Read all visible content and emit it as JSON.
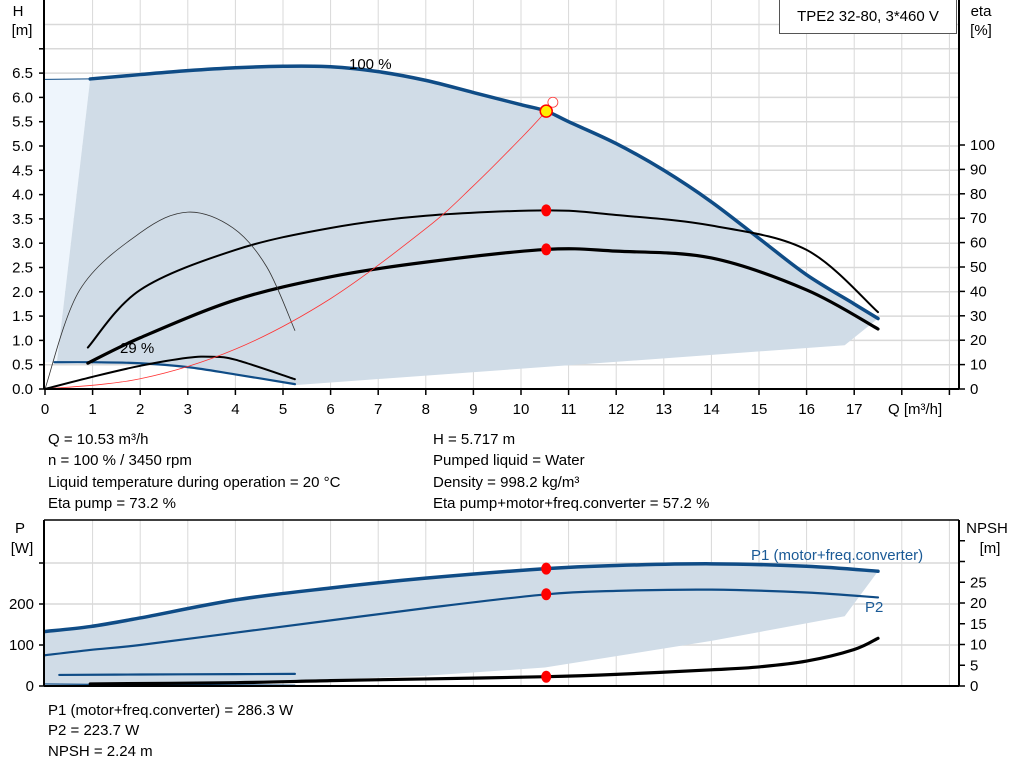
{
  "title": "TPE2 32-80, 3*460 V",
  "colors": {
    "curve_blue": "#0f4c86",
    "range_fill": "#d0dce7",
    "range_fill_light": "#eef5fc",
    "grid": "#d9d9d9",
    "operating_point": "#ff0000",
    "duty_marker": "#ffee00",
    "system_curve": "#ff3333",
    "label_blue": "#1a5a96"
  },
  "chart_data": [
    {
      "type": "line",
      "name": "head-efficiency",
      "xlabel": "Q [m³/h]",
      "ylabel_left": {
        "name": "H",
        "unit": "[m]"
      },
      "ylabel_right": {
        "name": "eta",
        "unit": "[%]"
      },
      "xlim": [
        0,
        19
      ],
      "ylim_left": [
        0,
        8
      ],
      "ylim_right": [
        0,
        160
      ],
      "x_ticks": [
        "0",
        "1",
        "2",
        "3",
        "4",
        "5",
        "6",
        "7",
        "8",
        "9",
        "10",
        "11",
        "12",
        "13",
        "14",
        "15",
        "16",
        "17"
      ],
      "y_ticks_left": [
        "0.0",
        "0.5",
        "1.0",
        "1.5",
        "2.0",
        "2.5",
        "3.0",
        "3.5",
        "4.0",
        "4.5",
        "5.0",
        "5.5",
        "6.0",
        "6.5"
      ],
      "y_ticks_right": [
        "0",
        "10",
        "20",
        "30",
        "40",
        "50",
        "60",
        "70",
        "80",
        "90",
        "100"
      ],
      "grid": true,
      "annotations": {
        "max_speed": "100 %",
        "min_speed": "29 %"
      },
      "operating_range": {
        "outer": [
          [
            0.95,
            6.38
          ],
          [
            2,
            6.47
          ],
          [
            3,
            6.55
          ],
          [
            4,
            6.61
          ],
          [
            5,
            6.64
          ],
          [
            6,
            6.63
          ],
          [
            7,
            6.53
          ],
          [
            8,
            6.35
          ],
          [
            9,
            6.1
          ],
          [
            10,
            5.85
          ],
          [
            11,
            5.5
          ],
          [
            12,
            5.05
          ],
          [
            13,
            4.5
          ],
          [
            14,
            3.85
          ],
          [
            15,
            3.1
          ],
          [
            16,
            2.35
          ],
          [
            17,
            1.75
          ],
          [
            17.5,
            1.45
          ],
          [
            16.8,
            0.9
          ],
          [
            5.25,
            0.08
          ],
          [
            4,
            0.3
          ],
          [
            3,
            0.45
          ],
          [
            2,
            0.53
          ],
          [
            0.25,
            0.55
          ]
        ],
        "extension": [
          [
            0,
            6.37
          ],
          [
            0.95,
            6.37
          ],
          [
            0.25,
            0.55
          ],
          [
            0,
            0.55
          ]
        ]
      },
      "series": [
        {
          "key": "h100",
          "axis": "left",
          "style": "blue-thick",
          "points": [
            [
              0.95,
              6.38
            ],
            [
              2,
              6.47
            ],
            [
              3,
              6.55
            ],
            [
              4,
              6.61
            ],
            [
              5,
              6.64
            ],
            [
              6,
              6.63
            ],
            [
              7,
              6.53
            ],
            [
              8,
              6.35
            ],
            [
              9,
              6.1
            ],
            [
              10,
              5.85
            ],
            [
              10.53,
              5.717
            ],
            [
              11,
              5.5
            ],
            [
              12,
              5.05
            ],
            [
              13,
              4.5
            ],
            [
              14,
              3.85
            ],
            [
              15,
              3.1
            ],
            [
              16,
              2.35
            ],
            [
              17,
              1.75
            ],
            [
              17.5,
              1.45
            ]
          ]
        },
        {
          "key": "h29",
          "axis": "left",
          "style": "blue",
          "points": [
            [
              0.2,
              0.55
            ],
            [
              1,
              0.55
            ],
            [
              2,
              0.53
            ],
            [
              3,
              0.45
            ],
            [
              4,
              0.3
            ],
            [
              5.25,
              0.1
            ]
          ]
        },
        {
          "key": "eta_pump",
          "axis": "right",
          "style": "black",
          "points": [
            [
              0.9,
              17
            ],
            [
              2,
              40.6
            ],
            [
              4,
              57
            ],
            [
              6,
              66
            ],
            [
              8,
              71
            ],
            [
              10.53,
              73.2
            ],
            [
              12,
              71.3
            ],
            [
              14,
              67
            ],
            [
              16,
              57
            ],
            [
              17.5,
              31.5
            ]
          ]
        },
        {
          "key": "eta_total",
          "axis": "right",
          "style": "black-thick",
          "points": [
            [
              0.9,
              10.6
            ],
            [
              2,
              21
            ],
            [
              4,
              36.5
            ],
            [
              6,
              46
            ],
            [
              8,
              52
            ],
            [
              10.53,
              57.2
            ],
            [
              12,
              56.5
            ],
            [
              14,
              53.7
            ],
            [
              16,
              40.6
            ],
            [
              17.5,
              24.6
            ]
          ]
        },
        {
          "key": "eta_pump_min",
          "axis": "right",
          "style": "black-thin",
          "points": [
            [
              0,
              0
            ],
            [
              0.73,
              40.6
            ],
            [
              2,
              64
            ],
            [
              3,
              72.5
            ],
            [
              3.95,
              66
            ],
            [
              4.66,
              50
            ],
            [
              5.25,
              24
            ]
          ]
        },
        {
          "key": "eta_total_min",
          "axis": "right",
          "style": "black",
          "points": [
            [
              0,
              0
            ],
            [
              1,
              5
            ],
            [
              2,
              9.5
            ],
            [
              3,
              12.8
            ],
            [
              3.5,
              13.2
            ],
            [
              4,
              12
            ],
            [
              5.25,
              4
            ]
          ]
        },
        {
          "key": "system",
          "axis": "left",
          "style": "red-thin",
          "points": [
            [
              0,
              0
            ],
            [
              2,
              0.21
            ],
            [
              4,
              0.82
            ],
            [
              6,
              1.86
            ],
            [
              8,
              3.3
            ],
            [
              9,
              4.18
            ],
            [
              10,
              5.16
            ],
            [
              10.53,
              5.717
            ],
            [
              10.67,
              5.9
            ]
          ]
        }
      ],
      "duty_point": {
        "q": 10.53,
        "h": 5.717,
        "requested": [
          10.67,
          5.9
        ]
      },
      "markers": [
        {
          "axis": "right",
          "q": 10.53,
          "v": 73.2
        },
        {
          "axis": "right",
          "q": 10.53,
          "v": 57.2
        }
      ]
    },
    {
      "type": "line",
      "name": "power-npsh",
      "ylabel_left": {
        "name": "P",
        "unit": "[W]"
      },
      "ylabel_right": {
        "name": "NPSH",
        "unit": "[m]"
      },
      "xlim": [
        0,
        19
      ],
      "ylim_left": [
        0,
        400
      ],
      "ylim_right": [
        0,
        35
      ],
      "y_ticks_left": [
        "0",
        "100",
        "200"
      ],
      "y_ticks_right": [
        "0",
        "5",
        "10",
        "15",
        "20",
        "25"
      ],
      "grid": true,
      "legend": {
        "p1": "P1 (motor+freq.converter)",
        "p2": "P2"
      },
      "operating_range": [
        [
          0.95,
          145
        ],
        [
          2,
          166
        ],
        [
          4,
          210
        ],
        [
          6,
          239
        ],
        [
          8,
          263
        ],
        [
          10.53,
          286.3
        ],
        [
          12,
          293
        ],
        [
          14,
          297
        ],
        [
          16,
          292
        ],
        [
          17.5,
          280
        ],
        [
          16.8,
          170
        ],
        [
          14,
          110
        ],
        [
          10.5,
          45
        ],
        [
          8,
          25
        ],
        [
          5.25,
          12
        ],
        [
          2,
          5
        ],
        [
          0.5,
          0
        ],
        [
          0,
          0
        ],
        [
          0,
          133
        ]
      ],
      "series": [
        {
          "key": "p1",
          "axis": "left",
          "style": "blue-thick",
          "points": [
            [
              0,
              133
            ],
            [
              0.95,
              145
            ],
            [
              2,
              166
            ],
            [
              4,
              210
            ],
            [
              6,
              239
            ],
            [
              8,
              263
            ],
            [
              10.53,
              286.3
            ],
            [
              12,
              294
            ],
            [
              14,
              298
            ],
            [
              16,
              292
            ],
            [
              17.5,
              280
            ]
          ]
        },
        {
          "key": "p2",
          "axis": "left",
          "style": "blue",
          "points": [
            [
              0,
              75
            ],
            [
              0.95,
              88
            ],
            [
              2,
              100
            ],
            [
              4,
              130
            ],
            [
              6,
              160
            ],
            [
              8,
              190
            ],
            [
              10.53,
              223.7
            ],
            [
              12,
              232
            ],
            [
              14,
              235
            ],
            [
              16,
              228
            ],
            [
              17.5,
              216
            ]
          ]
        },
        {
          "key": "p1_min",
          "axis": "left",
          "style": "blue",
          "points": [
            [
              0.3,
              27
            ],
            [
              2,
              28
            ],
            [
              4,
              29
            ],
            [
              5.25,
              29.5
            ]
          ]
        },
        {
          "key": "p2_min",
          "axis": "left",
          "style": "blue-thin",
          "points": [
            [
              0,
              5
            ],
            [
              1,
              4
            ],
            [
              3,
              3
            ],
            [
              5.25,
              2
            ]
          ]
        },
        {
          "key": "npsh",
          "axis": "right",
          "style": "black-thick",
          "points": [
            [
              0.95,
              0.5
            ],
            [
              4,
              0.8
            ],
            [
              6,
              1.3
            ],
            [
              8,
              1.7
            ],
            [
              10.53,
              2.24
            ],
            [
              12,
              2.8
            ],
            [
              14,
              3.9
            ],
            [
              15,
              4.6
            ],
            [
              16,
              6
            ],
            [
              17,
              8.8
            ],
            [
              17.5,
              11.5
            ]
          ]
        }
      ],
      "markers": [
        {
          "axis": "left",
          "q": 10.53,
          "v": 286.3
        },
        {
          "axis": "left",
          "q": 10.53,
          "v": 223.7
        },
        {
          "axis": "right",
          "q": 10.53,
          "v": 2.24
        }
      ]
    }
  ],
  "info_top": {
    "q": "Q = 10.53 m³/h",
    "n": "n = 100 % / 3450 rpm",
    "temp": "Liquid temperature during operation = 20 °C",
    "eta_pump": "Eta pump = 73.2 %",
    "h": "H = 5.717 m",
    "liquid": "Pumped liquid = Water",
    "density": "Density = 998.2 kg/m³",
    "eta_total": "Eta pump+motor+freq.converter = 57.2 %"
  },
  "info_bottom": {
    "p1": "P1 (motor+freq.converter) = 286.3 W",
    "p2": "P2 = 223.7 W",
    "npsh": "NPSH = 2.24 m"
  }
}
